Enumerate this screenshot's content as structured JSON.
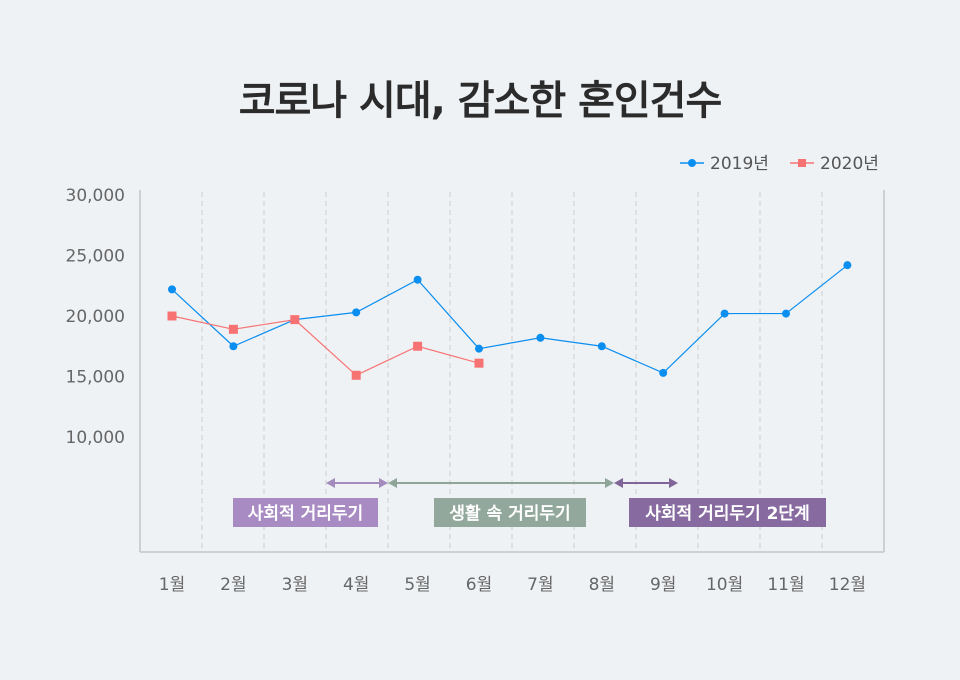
{
  "title": "코로나 시대, 감소한 혼인건수",
  "chart_data": {
    "type": "line",
    "title": "코로나 시대, 감소한 혼인건수",
    "categories": [
      "1월",
      "2월",
      "3월",
      "4월",
      "5월",
      "6월",
      "7월",
      "8월",
      "9월",
      "10월",
      "11월",
      "12월"
    ],
    "yticks": [
      "30,000",
      "25,000",
      "20,000",
      "15,000",
      "10,000"
    ],
    "ytick_values": [
      30000,
      25000,
      20000,
      15000,
      10000
    ],
    "ylim": [
      0,
      30000
    ],
    "grid": "vertical dashed",
    "legend": "top-right",
    "series": [
      {
        "name": "2019년",
        "color": "#0a8ef0",
        "marker": "circle",
        "values": [
          22200,
          17500,
          19700,
          20300,
          23000,
          17300,
          18200,
          17500,
          15300,
          20200,
          20200,
          24200
        ]
      },
      {
        "name": "2020년",
        "color": "#f77373",
        "marker": "square",
        "values": [
          20000,
          18900,
          19700,
          15100,
          17500,
          16100,
          null,
          null,
          null,
          null,
          null,
          null
        ]
      }
    ],
    "annotations": [
      {
        "label": "사회적 거리두기",
        "color": "#a88bc2",
        "arrow_color": "#a48bbd"
      },
      {
        "label": "생활 속 거리두기",
        "color": "#93a89d",
        "arrow_color": "#8fa59a"
      },
      {
        "label": "사회적 거리두기 2단계",
        "color": "#876ba0",
        "arrow_color": "#7f6598"
      }
    ]
  }
}
